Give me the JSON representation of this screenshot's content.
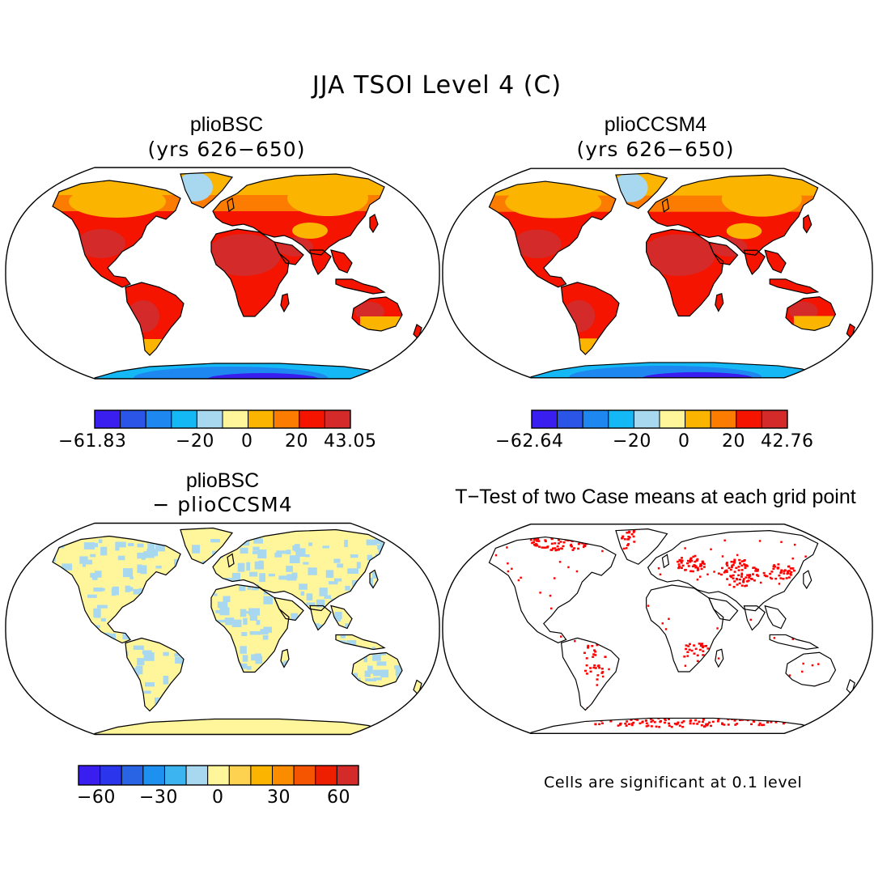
{
  "title": "JJA TSOI Level 4 (C)",
  "panels": [
    {
      "id": "plioBSC",
      "title": "plioBSC",
      "subtitle": "(yrs 626-650)",
      "colorbar": {
        "colors": [
          "#3a1ef0",
          "#2b55e6",
          "#1e88f0",
          "#14b8f5",
          "#a8d8f0",
          "#fff59a",
          "#fbb400",
          "#fb7c00",
          "#f51400",
          "#d42a2a"
        ],
        "tick_labels": [
          "-61.83",
          "-20",
          "0",
          "20",
          "43.05"
        ]
      }
    },
    {
      "id": "plioCCSM4",
      "title": "plioCCSM4",
      "subtitle": "(yrs 626-650)",
      "colorbar": {
        "colors": [
          "#3a1ef0",
          "#2b55e6",
          "#1e88f0",
          "#14b8f5",
          "#a8d8f0",
          "#fff59a",
          "#fbb400",
          "#fb7c00",
          "#f51400",
          "#d42a2a"
        ],
        "tick_labels": [
          "-62.64",
          "-20",
          "0",
          "20",
          "42.76"
        ]
      }
    },
    {
      "id": "difference",
      "title": "plioBSC",
      "subtitle": "- plioCCSM4",
      "colorbar": {
        "colors": [
          "#3a1ef0",
          "#2b35ec",
          "#2864e4",
          "#1e90f0",
          "#3cb4f0",
          "#a8d8f0",
          "#fff59a",
          "#fcd250",
          "#fbb400",
          "#fb8c00",
          "#f55500",
          "#ee1e00",
          "#d42a2a"
        ],
        "tick_labels": [
          "-60",
          "-30",
          "0",
          "30",
          "60"
        ]
      }
    },
    {
      "id": "ttest",
      "title": "T-Test of two Case means at each grid point",
      "note": "Cells are significant at 0.1 level"
    }
  ],
  "map_colors": {
    "ocean": "#ffffff",
    "outline": "#000000",
    "dark_red": "#d42a2a",
    "red": "#f51400",
    "orange_red": "#fb7c00",
    "orange": "#fbb400",
    "yellow": "#fff59a",
    "light_blue": "#a8d8f0",
    "blue": "#14b8f5",
    "mid_blue": "#1e88f0",
    "deep_blue": "#3a1ef0",
    "significant": "#ff0000"
  }
}
